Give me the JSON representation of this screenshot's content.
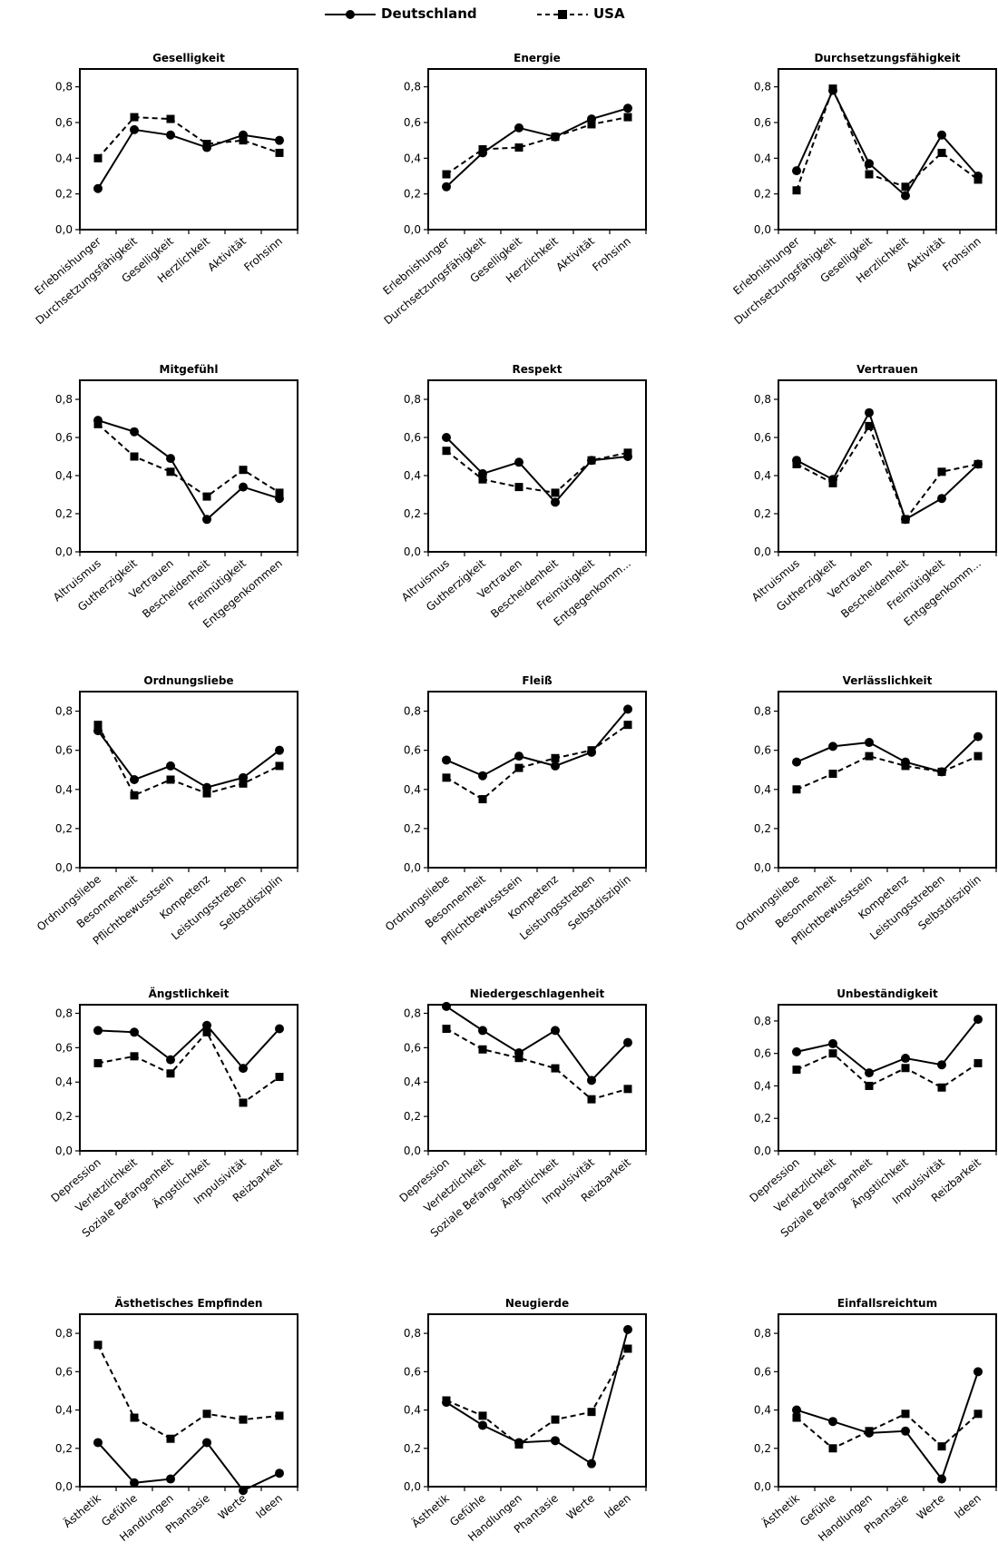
{
  "legend": {
    "series_de": "Deutschland",
    "series_us": "USA"
  },
  "series_names": [
    "Deutschland",
    "USA"
  ],
  "y_tick_labels": [
    "0,0",
    "0,2",
    "0,4",
    "0,6",
    "0,8"
  ],
  "colors": {
    "line": "#000000",
    "frame": "#000000",
    "background": "#ffffff"
  },
  "chart_data": [
    {
      "type": "line",
      "title": "Geselligkeit",
      "categories": [
        "Erlebnishunger",
        "Durchsetzungsfähigkeit",
        "Geselligkeit",
        "Herzlichkeit",
        "Aktivität",
        "Frohsinn"
      ],
      "ylim": [
        0,
        0.9
      ],
      "series": [
        {
          "name": "Deutschland",
          "values": [
            0.23,
            0.56,
            0.53,
            0.46,
            0.53,
            0.5
          ]
        },
        {
          "name": "USA",
          "values": [
            0.4,
            0.63,
            0.62,
            0.48,
            0.5,
            0.43
          ]
        }
      ]
    },
    {
      "type": "line",
      "title": "Energie",
      "categories": [
        "Erlebnishunger",
        "Durchsetzungsfähigkeit",
        "Geselligkeit",
        "Herzlichkeit",
        "Aktivität",
        "Frohsinn"
      ],
      "ylim": [
        0,
        0.9
      ],
      "series": [
        {
          "name": "Deutschland",
          "values": [
            0.24,
            0.43,
            0.57,
            0.52,
            0.62,
            0.68
          ]
        },
        {
          "name": "USA",
          "values": [
            0.31,
            0.45,
            0.46,
            0.52,
            0.59,
            0.63
          ]
        }
      ]
    },
    {
      "type": "line",
      "title": "Durchsetzungsfähigkeit",
      "categories": [
        "Erlebnishunger",
        "Durchsetzungsfähigkeit",
        "Geselligkeit",
        "Herzlichkeit",
        "Aktivität",
        "Frohsinn"
      ],
      "ylim": [
        0,
        0.9
      ],
      "series": [
        {
          "name": "Deutschland",
          "values": [
            0.33,
            0.78,
            0.37,
            0.19,
            0.53,
            0.3
          ]
        },
        {
          "name": "USA",
          "values": [
            0.22,
            0.79,
            0.31,
            0.24,
            0.43,
            0.28
          ]
        }
      ]
    },
    {
      "type": "line",
      "title": "Mitgefühl",
      "categories": [
        "Altruismus",
        "Gutherzigkeit",
        "Vertrauen",
        "Bescheidenheit",
        "Freimütigkeit",
        "Entgegenkommen"
      ],
      "ylim": [
        0,
        0.9
      ],
      "series": [
        {
          "name": "Deutschland",
          "values": [
            0.69,
            0.63,
            0.49,
            0.17,
            0.34,
            0.28
          ]
        },
        {
          "name": "USA",
          "values": [
            0.67,
            0.5,
            0.42,
            0.29,
            0.43,
            0.31
          ]
        }
      ]
    },
    {
      "type": "line",
      "title": "Respekt",
      "categories": [
        "Altruismus",
        "Gutherzigkeit",
        "Vertrauen",
        "Bescheidenheit",
        "Freimütigkeit",
        "Entgegenkomm..."
      ],
      "ylim": [
        0,
        0.9
      ],
      "series": [
        {
          "name": "Deutschland",
          "values": [
            0.6,
            0.41,
            0.47,
            0.26,
            0.48,
            0.5
          ]
        },
        {
          "name": "USA",
          "values": [
            0.53,
            0.38,
            0.34,
            0.31,
            0.48,
            0.52
          ]
        }
      ]
    },
    {
      "type": "line",
      "title": "Vertrauen",
      "categories": [
        "Altruismus",
        "Gutherzigkeit",
        "Vertrauen",
        "Bescheidenheit",
        "Freimütigkeit",
        "Entgegenkomm..."
      ],
      "ylim": [
        0,
        0.9
      ],
      "series": [
        {
          "name": "Deutschland",
          "values": [
            0.48,
            0.38,
            0.73,
            0.17,
            0.28,
            0.46
          ]
        },
        {
          "name": "USA",
          "values": [
            0.46,
            0.36,
            0.66,
            0.17,
            0.42,
            0.46
          ]
        }
      ]
    },
    {
      "type": "line",
      "title": "Ordnungsliebe",
      "categories": [
        "Ordnungsliebe",
        "Besonnenheit",
        "Pflichtbewusstsein",
        "Kompetenz",
        "Leistungsstreben",
        "Selbstdisziplin"
      ],
      "ylim": [
        0,
        0.9
      ],
      "series": [
        {
          "name": "Deutschland",
          "values": [
            0.7,
            0.45,
            0.52,
            0.41,
            0.46,
            0.6
          ]
        },
        {
          "name": "USA",
          "values": [
            0.73,
            0.37,
            0.45,
            0.38,
            0.43,
            0.52
          ]
        }
      ]
    },
    {
      "type": "line",
      "title": "Fleiß",
      "categories": [
        "Ordnungsliebe",
        "Besonnenheit",
        "Pflichtbewusstsein",
        "Kompetenz",
        "Leistungsstreben",
        "Selbstdisziplin"
      ],
      "ylim": [
        0,
        0.9
      ],
      "series": [
        {
          "name": "Deutschland",
          "values": [
            0.55,
            0.47,
            0.57,
            0.52,
            0.59,
            0.81
          ]
        },
        {
          "name": "USA",
          "values": [
            0.46,
            0.35,
            0.51,
            0.56,
            0.6,
            0.73
          ]
        }
      ]
    },
    {
      "type": "line",
      "title": "Verlässlichkeit",
      "categories": [
        "Ordnungsliebe",
        "Besonnenheit",
        "Pflichtbewusstsein",
        "Kompetenz",
        "Leistungsstreben",
        "Selbstdisziplin"
      ],
      "ylim": [
        0,
        0.9
      ],
      "series": [
        {
          "name": "Deutschland",
          "values": [
            0.54,
            0.62,
            0.64,
            0.54,
            0.49,
            0.67
          ]
        },
        {
          "name": "USA",
          "values": [
            0.4,
            0.48,
            0.57,
            0.52,
            0.49,
            0.57
          ]
        }
      ]
    },
    {
      "type": "line",
      "title": "Ängstlichkeit",
      "categories": [
        "Depression",
        "Verletzlichkeit",
        "Soziale Befangenheit",
        "Ängstlichkeit",
        "Impulsivität",
        "Reizbarkeit"
      ],
      "ylim": [
        0,
        0.85
      ],
      "series": [
        {
          "name": "Deutschland",
          "values": [
            0.7,
            0.69,
            0.53,
            0.73,
            0.48,
            0.71
          ]
        },
        {
          "name": "USA",
          "values": [
            0.51,
            0.55,
            0.45,
            0.69,
            0.28,
            0.43
          ]
        }
      ]
    },
    {
      "type": "line",
      "title": "Niedergeschlagenheit",
      "categories": [
        "Depression",
        "Verletzlichkeit",
        "Soziale Befangenheit",
        "Ängstlichkeit",
        "Impulsivität",
        "Reizbarkeit"
      ],
      "ylim": [
        0,
        0.85
      ],
      "series": [
        {
          "name": "Deutschland",
          "values": [
            0.84,
            0.7,
            0.57,
            0.7,
            0.41,
            0.63
          ]
        },
        {
          "name": "USA",
          "values": [
            0.71,
            0.59,
            0.54,
            0.48,
            0.3,
            0.36
          ]
        }
      ]
    },
    {
      "type": "line",
      "title": "Unbeständigkeit",
      "categories": [
        "Depression",
        "Verletzlichkeit",
        "Soziale Befangenheit",
        "Ängstlichkeit",
        "Impulsivität",
        "Reizbarkeit"
      ],
      "ylim": [
        0,
        0.9
      ],
      "series": [
        {
          "name": "Deutschland",
          "values": [
            0.61,
            0.66,
            0.48,
            0.57,
            0.53,
            0.81
          ]
        },
        {
          "name": "USA",
          "values": [
            0.5,
            0.6,
            0.4,
            0.51,
            0.39,
            0.54
          ]
        }
      ]
    },
    {
      "type": "line",
      "title": "Ästhetisches Empfinden",
      "categories": [
        "Ästhetik",
        "Gefühle",
        "Handlungen",
        "Phantasie",
        "Werte",
        "Ideen"
      ],
      "ylim": [
        0,
        0.9
      ],
      "series": [
        {
          "name": "Deutschland",
          "values": [
            0.23,
            0.02,
            0.04,
            0.23,
            -0.02,
            0.07
          ]
        },
        {
          "name": "USA",
          "values": [
            0.74,
            0.36,
            0.25,
            0.38,
            0.35,
            0.37
          ]
        }
      ]
    },
    {
      "type": "line",
      "title": "Neugierde",
      "categories": [
        "Ästhetik",
        "Gefühle",
        "Handlungen",
        "Phantasie",
        "Werte",
        "Ideen"
      ],
      "ylim": [
        0,
        0.9
      ],
      "series": [
        {
          "name": "Deutschland",
          "values": [
            0.44,
            0.32,
            0.23,
            0.24,
            0.12,
            0.82
          ]
        },
        {
          "name": "USA",
          "values": [
            0.45,
            0.37,
            0.22,
            0.35,
            0.39,
            0.72
          ]
        }
      ]
    },
    {
      "type": "line",
      "title": "Einfallsreichtum",
      "categories": [
        "Ästhetik",
        "Gefühle",
        "Handlungen",
        "Phantasie",
        "Werte",
        "Ideen"
      ],
      "ylim": [
        0,
        0.9
      ],
      "series": [
        {
          "name": "Deutschland",
          "values": [
            0.4,
            0.34,
            0.28,
            0.29,
            0.04,
            0.6
          ]
        },
        {
          "name": "USA",
          "values": [
            0.36,
            0.2,
            0.29,
            0.38,
            0.21,
            0.38
          ]
        }
      ]
    }
  ]
}
